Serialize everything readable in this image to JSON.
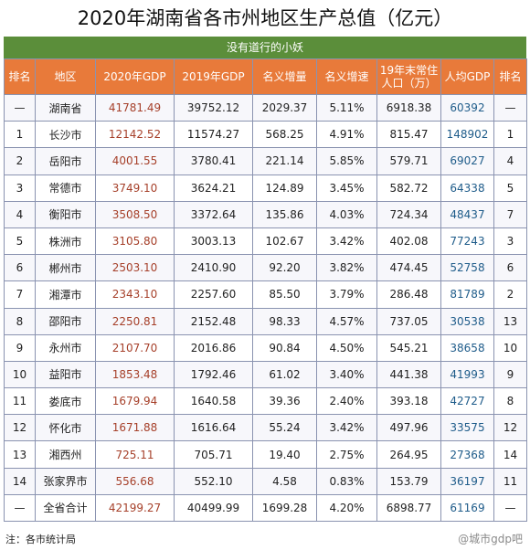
{
  "title": "2020年湖南省各市州地区生产总值（亿元）",
  "subtitle": "没有道行的小妖",
  "headers": {
    "rank1": "排名",
    "region": "地区",
    "gdp2020": "2020年GDP",
    "gdp2019": "2019年GDP",
    "nominal_increase": "名义增量",
    "nominal_growth": "名义增速",
    "population_line1": "19年末常住",
    "population_line2": "人口（万）",
    "per_capita": "人均GDP",
    "rank2": "排名"
  },
  "rows": [
    {
      "rank": "—",
      "region": "湖南省",
      "gdp2020": "41781.49",
      "gdp2019": "39752.12",
      "increase": "2029.37",
      "growth": "5.11%",
      "population": "6918.38",
      "per_capita": "60392",
      "pc_rank": "—"
    },
    {
      "rank": "1",
      "region": "长沙市",
      "gdp2020": "12142.52",
      "gdp2019": "11574.27",
      "increase": "568.25",
      "growth": "4.91%",
      "population": "815.47",
      "per_capita": "148902",
      "pc_rank": "1"
    },
    {
      "rank": "2",
      "region": "岳阳市",
      "gdp2020": "4001.55",
      "gdp2019": "3780.41",
      "increase": "221.14",
      "growth": "5.85%",
      "population": "579.71",
      "per_capita": "69027",
      "pc_rank": "4"
    },
    {
      "rank": "3",
      "region": "常德市",
      "gdp2020": "3749.10",
      "gdp2019": "3624.21",
      "increase": "124.89",
      "growth": "3.45%",
      "population": "582.72",
      "per_capita": "64338",
      "pc_rank": "5"
    },
    {
      "rank": "4",
      "region": "衡阳市",
      "gdp2020": "3508.50",
      "gdp2019": "3372.64",
      "increase": "135.86",
      "growth": "4.03%",
      "population": "724.34",
      "per_capita": "48437",
      "pc_rank": "7"
    },
    {
      "rank": "5",
      "region": "株洲市",
      "gdp2020": "3105.80",
      "gdp2019": "3003.13",
      "increase": "102.67",
      "growth": "3.42%",
      "population": "402.08",
      "per_capita": "77243",
      "pc_rank": "3"
    },
    {
      "rank": "6",
      "region": "郴州市",
      "gdp2020": "2503.10",
      "gdp2019": "2410.90",
      "increase": "92.20",
      "growth": "3.82%",
      "population": "474.45",
      "per_capita": "52758",
      "pc_rank": "6"
    },
    {
      "rank": "7",
      "region": "湘潭市",
      "gdp2020": "2343.10",
      "gdp2019": "2257.60",
      "increase": "85.50",
      "growth": "3.79%",
      "population": "286.48",
      "per_capita": "81789",
      "pc_rank": "2"
    },
    {
      "rank": "8",
      "region": "邵阳市",
      "gdp2020": "2250.81",
      "gdp2019": "2152.48",
      "increase": "98.33",
      "growth": "4.57%",
      "population": "737.05",
      "per_capita": "30538",
      "pc_rank": "13"
    },
    {
      "rank": "9",
      "region": "永州市",
      "gdp2020": "2107.70",
      "gdp2019": "2016.86",
      "increase": "90.84",
      "growth": "4.50%",
      "population": "545.21",
      "per_capita": "38658",
      "pc_rank": "10"
    },
    {
      "rank": "10",
      "region": "益阳市",
      "gdp2020": "1853.48",
      "gdp2019": "1792.46",
      "increase": "61.02",
      "growth": "3.40%",
      "population": "441.38",
      "per_capita": "41993",
      "pc_rank": "9"
    },
    {
      "rank": "11",
      "region": "娄底市",
      "gdp2020": "1679.94",
      "gdp2019": "1640.58",
      "increase": "39.36",
      "growth": "2.40%",
      "population": "393.18",
      "per_capita": "42727",
      "pc_rank": "8"
    },
    {
      "rank": "12",
      "region": "怀化市",
      "gdp2020": "1671.88",
      "gdp2019": "1616.64",
      "increase": "55.24",
      "growth": "3.42%",
      "population": "497.96",
      "per_capita": "33575",
      "pc_rank": "12"
    },
    {
      "rank": "13",
      "region": "湘西州",
      "gdp2020": "725.11",
      "gdp2019": "705.71",
      "increase": "19.40",
      "growth": "2.75%",
      "population": "264.95",
      "per_capita": "27368",
      "pc_rank": "14"
    },
    {
      "rank": "14",
      "region": "张家界市",
      "gdp2020": "556.68",
      "gdp2019": "552.10",
      "increase": "4.58",
      "growth": "0.83%",
      "population": "153.79",
      "per_capita": "36197",
      "pc_rank": "11"
    },
    {
      "rank": "—",
      "region": "全省合计",
      "gdp2020": "42199.27",
      "gdp2019": "40499.99",
      "increase": "1699.28",
      "growth": "4.20%",
      "population": "6898.77",
      "per_capita": "61169",
      "pc_rank": "—"
    }
  ],
  "note": "注：各市统计局",
  "watermark": "@城市gdp吧"
}
